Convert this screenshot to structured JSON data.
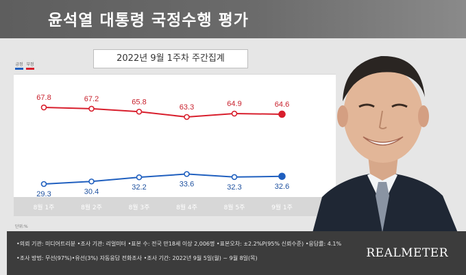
{
  "header": {
    "title": "윤석열 대통령 국정수행 평가"
  },
  "subtitle": "2022년 9월 1주차 주간집계",
  "legend": [
    {
      "label": "긍정",
      "color": "#1f5fbf"
    },
    {
      "label": "부정",
      "color": "#d81e2c"
    }
  ],
  "unit": "단위:%",
  "chart_data": {
    "type": "line",
    "categories": [
      "8월 1주",
      "8월 2주",
      "8월 3주",
      "8월 4주",
      "8월 5주",
      "9월 1주"
    ],
    "series": [
      {
        "name": "부정",
        "color": "#d81e2c",
        "values": [
          67.8,
          67.2,
          65.8,
          63.3,
          64.9,
          64.6
        ]
      },
      {
        "name": "긍정",
        "color": "#1f5fbf",
        "values": [
          29.3,
          30.4,
          32.2,
          33.6,
          32.3,
          32.6
        ]
      }
    ],
    "title": "윤석열 대통령 국정수행 평가",
    "subtitle": "2022년 9월 1주차 주간집계",
    "xlabel": "",
    "ylabel": "",
    "unit": "단위:%",
    "grid": false,
    "legend": "top-left"
  },
  "footer": {
    "line1": "•의뢰 기관: 미디어트리뷴 •조사 기관: 리얼미터 •표본 수: 전국 만18세 이상 2,006명 •표본오차: ±2.2%P(95% 신뢰수준) •응답률: 4.1%",
    "line2": "•조사 방법: 무선(97%)•유선(3%) 자동응답 전화조사 •조사 기간: 2022년 9월 5일(월) ~ 9월 8일(목)",
    "brand": "REALMETER"
  }
}
